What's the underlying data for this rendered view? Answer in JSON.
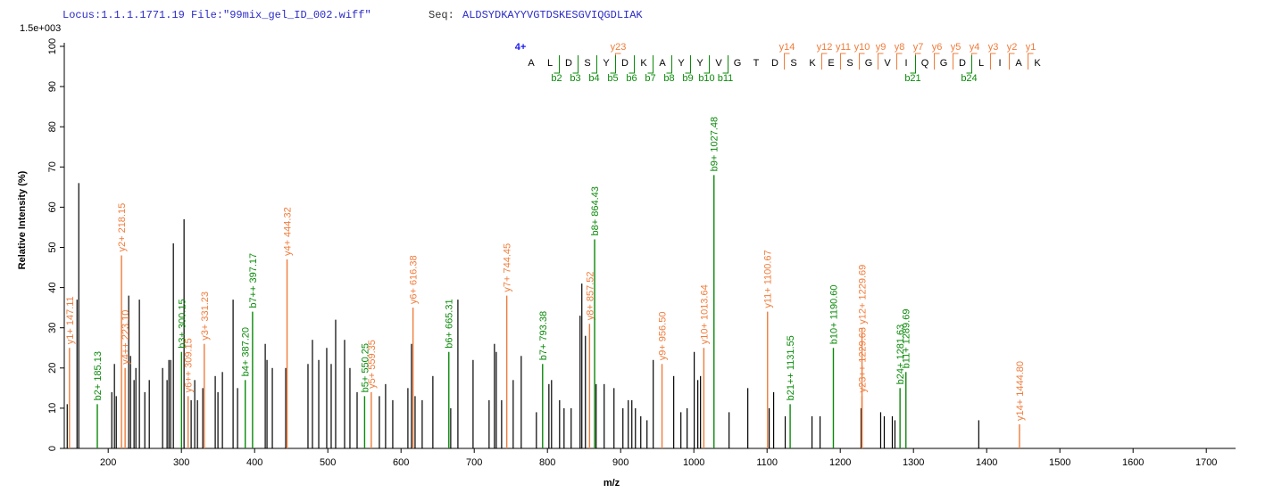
{
  "chart_data": {
    "type": "spectrum",
    "locus": "Locus:1.1.1.1771.19 File:\"99mix_gel_ID_002.wiff\"",
    "seq_label": "Seq:",
    "sequence": "ALDSYDKAYYVGTDSKESGVIQGDLIAK",
    "scale_label": "1.5e+003",
    "y_label": "Relative   Intensity (%)",
    "x_label": "m/z",
    "xlim": [
      140,
      1740
    ],
    "ylim": [
      0,
      100
    ],
    "xticks": [
      200,
      300,
      400,
      500,
      600,
      700,
      800,
      900,
      1000,
      1100,
      1200,
      1300,
      1400,
      1500,
      1600,
      1700
    ],
    "yticks": [
      0,
      10,
      20,
      30,
      40,
      50,
      60,
      70,
      80,
      90,
      100
    ],
    "peak_color": "#000000",
    "x": [
      144.0,
      157.4,
      159.8,
      204.9,
      208.5,
      211.0,
      228.0,
      230.5,
      235.3,
      237.8,
      242.6,
      250.0,
      256.1,
      274.3,
      280.4,
      282.9,
      285.3,
      289.0,
      303.6,
      313.3,
      318.2,
      321.9,
      329.2,
      346.2,
      349.9,
      356.0,
      370.6,
      376.7,
      414.5,
      416.9,
      424.2,
      442.5,
      472.9,
      479.0,
      487.6,
      498.5,
      504.6,
      510.7,
      522.9,
      530.2,
      540.0,
      570.4,
      578.9,
      588.7,
      609.4,
      614.3,
      619.2,
      628.9,
      643.5,
      667.9,
      677.7,
      698.4,
      720.3,
      727.6,
      730.1,
      737.4,
      753.2,
      764.2,
      784.9,
      802.0,
      805.6,
      816.6,
      822.7,
      832.4,
      844.6,
      847.0,
      851.9,
      866.5,
      877.5,
      890.9,
      903.1,
      910.4,
      915.3,
      920.2,
      927.5,
      936.0,
      944.5,
      972.5,
      982.3,
      990.8,
      1000.5,
      1005.4,
      1009.1,
      1048.1,
      1073.7,
      1102.9,
      1109.0,
      1124.8,
      1161.4,
      1172.4,
      1228.4,
      1255.2,
      1260.1,
      1271.1,
      1274.7,
      1389.2
    ],
    "values": [
      11,
      37,
      66,
      14,
      21,
      13,
      38,
      23,
      17,
      20,
      37,
      14,
      17,
      20,
      17,
      22,
      22,
      51,
      57,
      12,
      17,
      12,
      15,
      18,
      14,
      19,
      37,
      15,
      26,
      22,
      20,
      20,
      21,
      27,
      22,
      25,
      21,
      32,
      27,
      20,
      14,
      13,
      16,
      12,
      15,
      26,
      13,
      12,
      18,
      10,
      37,
      22,
      12,
      26,
      24,
      12,
      17,
      23,
      9,
      16,
      17,
      12,
      10,
      10,
      33,
      41,
      28,
      16,
      16,
      15,
      10,
      12,
      12,
      10,
      8,
      7,
      22,
      18,
      9,
      10,
      24,
      17,
      18,
      9,
      15,
      10,
      14,
      8,
      8,
      8,
      10,
      9,
      8,
      8,
      7,
      7
    ],
    "labeled_peaks": [
      {
        "label": "y1+ 147.11",
        "x": 147.11,
        "value": 25,
        "color": "#f07c3c"
      },
      {
        "label": "b2+ 185.13",
        "x": 185.13,
        "value": 11,
        "color": "#0a8a0a"
      },
      {
        "label": "y2+ 218.15",
        "x": 218.15,
        "value": 48,
        "color": "#f07c3c"
      },
      {
        "label": "y4++ 223.10",
        "x": 223.1,
        "value": 20,
        "color": "#f07c3c"
      },
      {
        "label": "b3+ 300.15",
        "x": 300.15,
        "value": 24,
        "color": "#0a8a0a"
      },
      {
        "label": "y6++ 309.15",
        "x": 309.15,
        "value": 13,
        "color": "#f07c3c"
      },
      {
        "label": "y3+ 331.23",
        "x": 331.23,
        "value": 26,
        "color": "#f07c3c"
      },
      {
        "label": "b4+ 387.20",
        "x": 387.2,
        "value": 17,
        "color": "#0a8a0a"
      },
      {
        "label": "b7++ 397.17",
        "x": 397.17,
        "value": 34,
        "color": "#0a8a0a"
      },
      {
        "label": "y4+ 444.32",
        "x": 444.32,
        "value": 47,
        "color": "#f07c3c"
      },
      {
        "label": "b5+ 550.25",
        "x": 550.25,
        "value": 13,
        "color": "#0a8a0a"
      },
      {
        "label": "y5+ 559.35",
        "x": 559.35,
        "value": 14,
        "color": "#f07c3c"
      },
      {
        "label": "y6+ 616.38",
        "x": 616.38,
        "value": 35,
        "color": "#f07c3c"
      },
      {
        "label": "b6+ 665.31",
        "x": 665.31,
        "value": 24,
        "color": "#0a8a0a"
      },
      {
        "label": "y7+ 744.45",
        "x": 744.45,
        "value": 38,
        "color": "#f07c3c"
      },
      {
        "label": "b7+ 793.38",
        "x": 793.38,
        "value": 21,
        "color": "#0a8a0a"
      },
      {
        "label": "y8+ 857.52",
        "x": 857.52,
        "value": 31,
        "color": "#f07c3c"
      },
      {
        "label": "b8+ 864.43",
        "x": 864.43,
        "value": 52,
        "color": "#0a8a0a"
      },
      {
        "label": "y9+ 956.50",
        "x": 956.5,
        "value": 21,
        "color": "#f07c3c"
      },
      {
        "label": "y10+ 1013.64",
        "x": 1013.64,
        "value": 25,
        "color": "#f07c3c"
      },
      {
        "label": "b9+ 1027.48",
        "x": 1027.48,
        "value": 68,
        "color": "#0a8a0a"
      },
      {
        "label": "y11+ 1100.67",
        "x": 1100.67,
        "value": 34,
        "color": "#f07c3c"
      },
      {
        "label": "b21++ 1131.55",
        "x": 1131.55,
        "value": 11,
        "color": "#0a8a0a"
      },
      {
        "label": "b10+ 1190.60",
        "x": 1190.6,
        "value": 25,
        "color": "#0a8a0a"
      },
      {
        "label": "y23++ 1229.63",
        "x": 1229.63,
        "value": 13,
        "color": "#f07c3c"
      },
      {
        "label": "y12+ 1229.69",
        "x": 1229.69,
        "value": 30,
        "color": "#f07c3c"
      },
      {
        "label": "b24+ 1281.63",
        "x": 1281.63,
        "value": 15,
        "color": "#0a8a0a"
      },
      {
        "label": "b11+ 1289.69",
        "x": 1289.69,
        "value": 19,
        "color": "#0a8a0a"
      },
      {
        "label": "y14+ 1444.80",
        "x": 1444.8,
        "value": 6,
        "color": "#f07c3c"
      }
    ],
    "charge": "4+",
    "sequence_letters": [
      "A",
      "L",
      "D",
      "S",
      "Y",
      "D",
      "K",
      "A",
      "Y",
      "Y",
      "V",
      "G",
      "T",
      "D",
      "S",
      "K",
      "E",
      "S",
      "G",
      "V",
      "I",
      "Q",
      "G",
      "D",
      "L",
      "I",
      "A",
      "K"
    ],
    "y_markers": [
      "y23",
      "y14",
      "y12",
      "y11",
      "y10",
      "y9",
      "y8",
      "y7",
      "y6",
      "y5",
      "y4",
      "y3",
      "y2",
      "y1"
    ],
    "b_markers": [
      "b2",
      "b3",
      "b4",
      "b5",
      "b6",
      "b7",
      "b8",
      "b9",
      "b10",
      "b11",
      "b21",
      "b24"
    ],
    "y_marker_color": "#f07c3c",
    "b_marker_color": "#0a8a0a"
  }
}
